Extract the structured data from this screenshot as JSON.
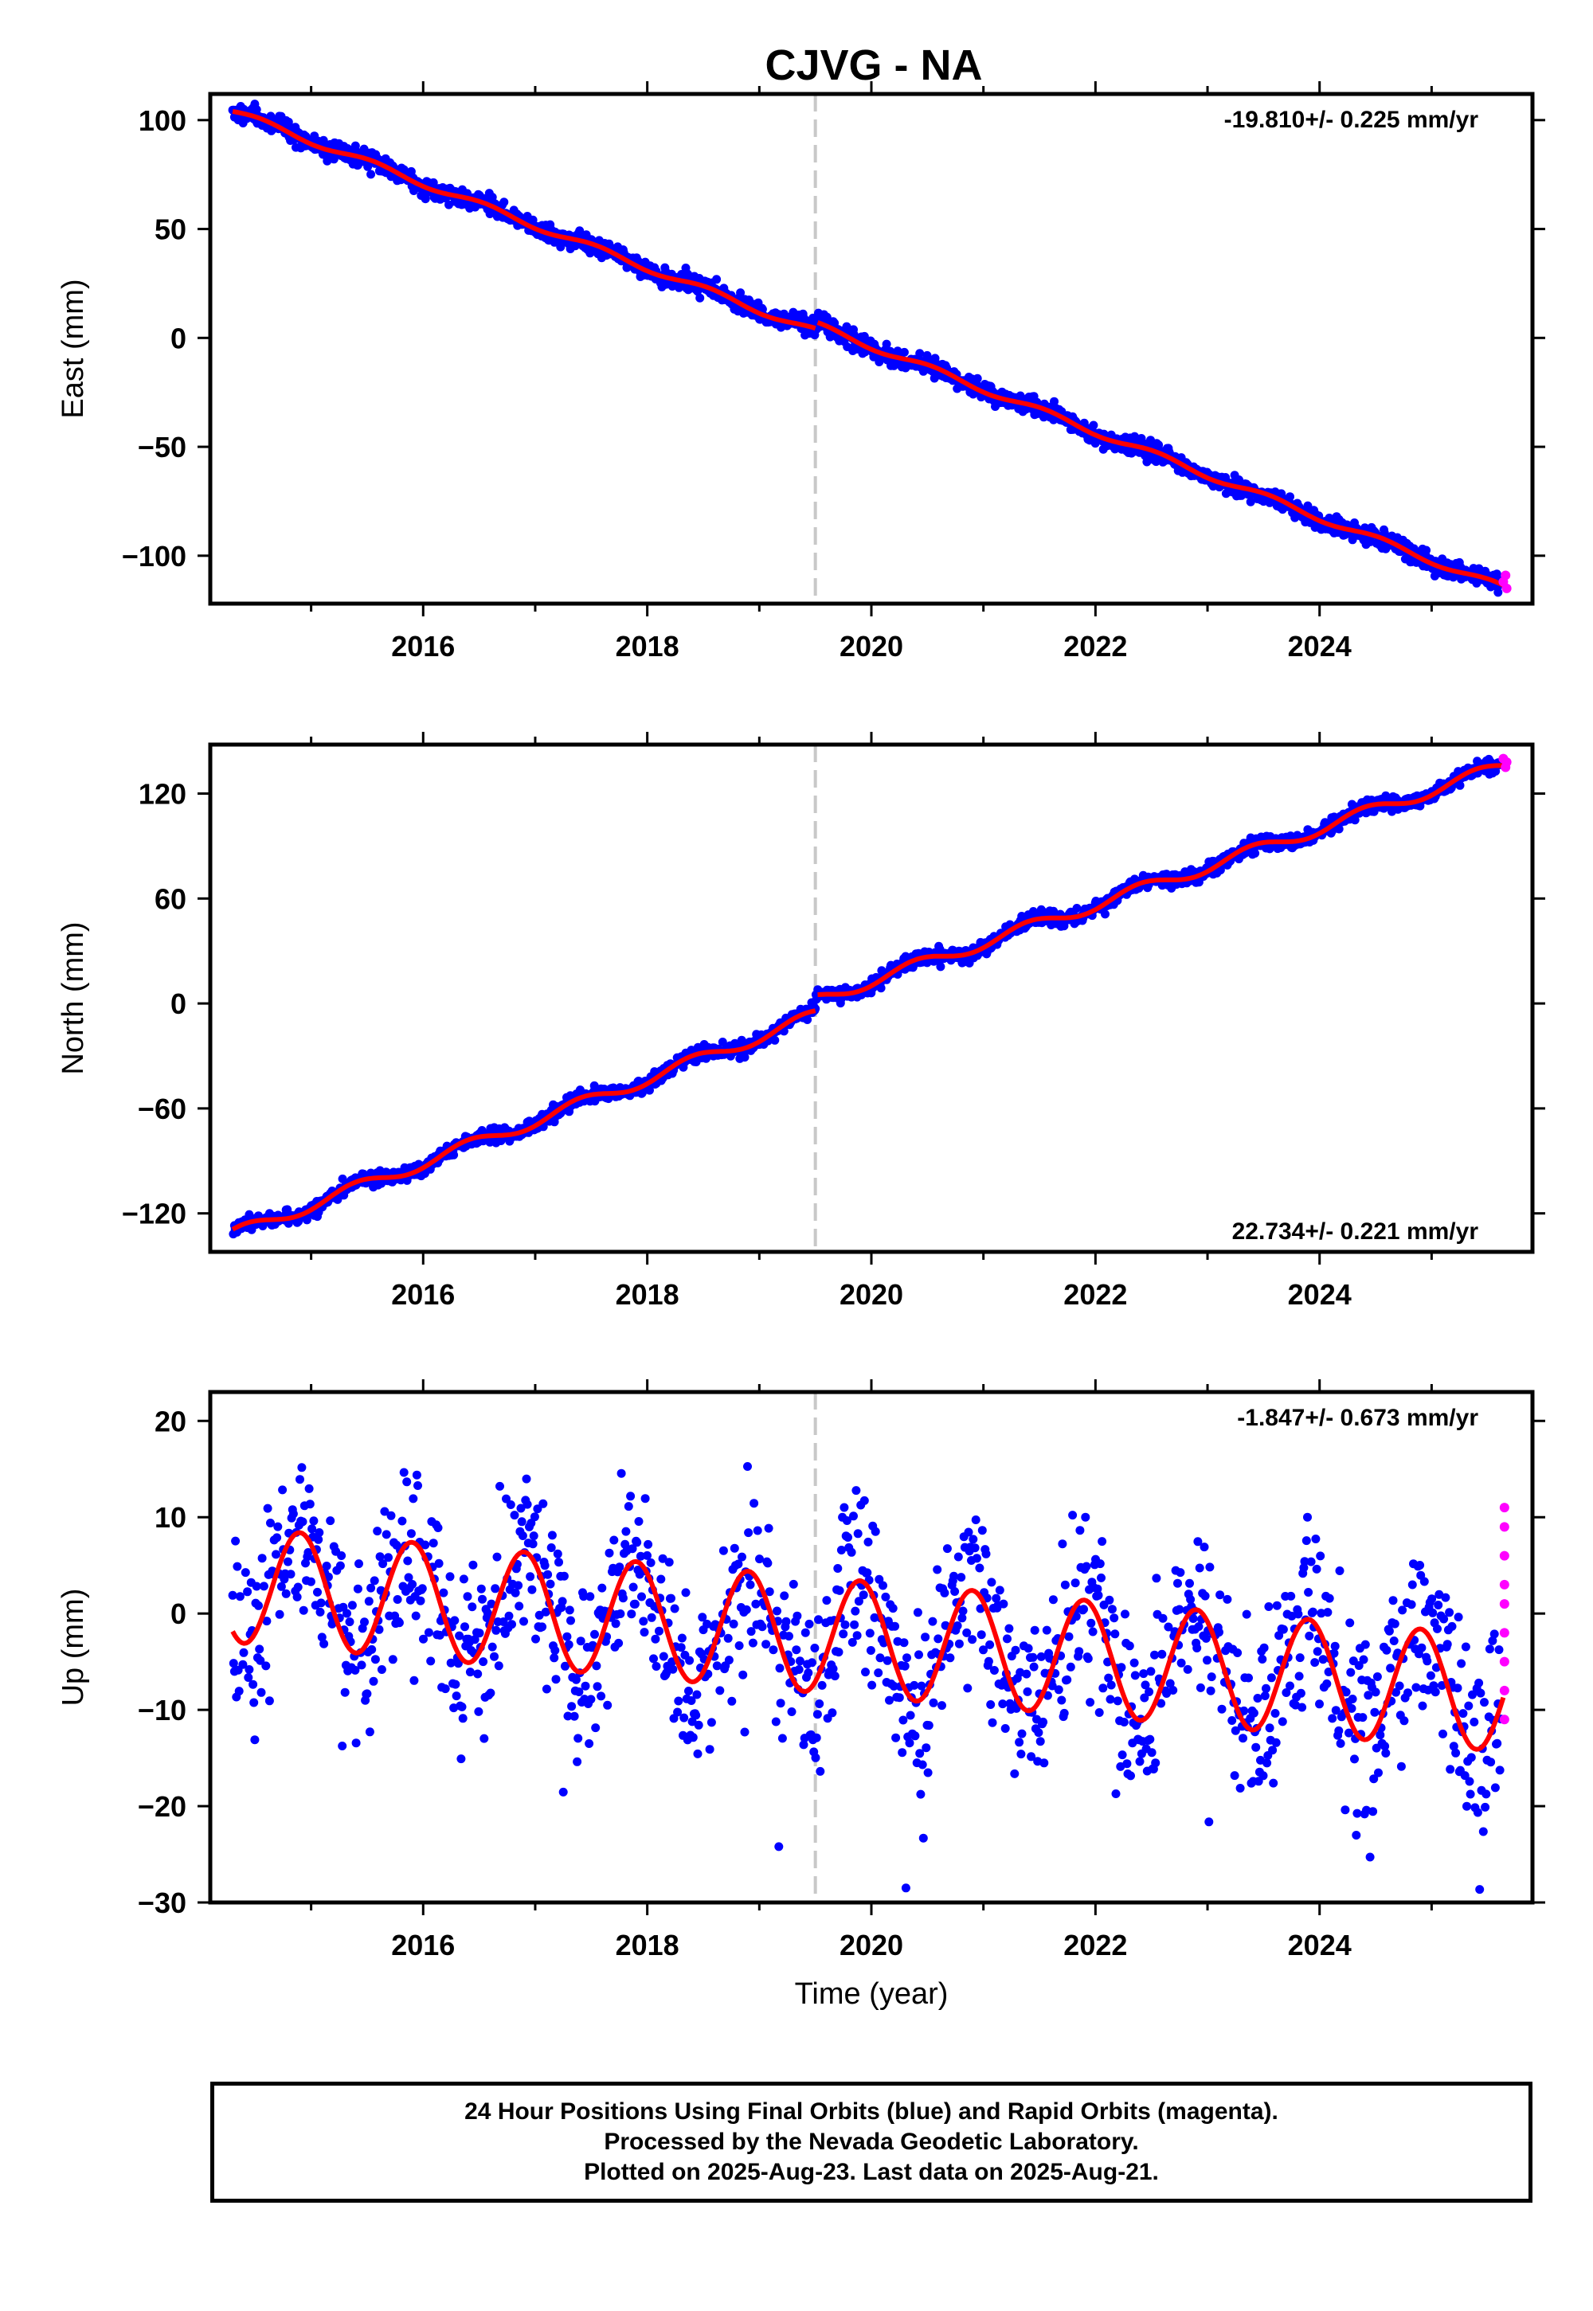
{
  "title": "CJVG - NA",
  "xlabel": "Time (year)",
  "footer": {
    "line1": "24 Hour Positions Using Final Orbits (blue) and Rapid Orbits (magenta).",
    "line2": "Processed by the Nevada Geodetic Laboratory.",
    "line3": "Plotted on 2025-Aug-23. Last data on 2025-Aug-21."
  },
  "colors": {
    "final_orbits": "#0000ff",
    "rapid_orbits": "#ff00ff",
    "model_fit": "#ff0000",
    "event_line": "#c8c8c8"
  },
  "chart_data": [
    {
      "type": "scatter",
      "component": "east",
      "ylabel": "East (mm)",
      "rate_label": "-19.810+/- 0.225 mm/yr",
      "xlim": [
        2014.1,
        2025.9
      ],
      "ylim": [
        -122,
        112
      ],
      "xticks": [
        2016,
        2018,
        2020,
        2022,
        2024
      ],
      "yticks": [
        -100,
        -50,
        0,
        50,
        100
      ],
      "event_x": 2019.5,
      "trend": {
        "series": "model fit",
        "points": [
          [
            2014.3,
            104
          ],
          [
            2019.5,
            3
          ],
          [
            2019.5,
            6
          ],
          [
            2025.65,
            -115
          ]
        ]
      },
      "rapid_points": [
        [
          2025.64,
          -112
        ],
        [
          2025.66,
          -109
        ],
        [
          2025.67,
          -115
        ]
      ],
      "grid": false
    },
    {
      "type": "scatter",
      "component": "north",
      "ylabel": "North (mm)",
      "rate_label": "22.734+/- 0.221 mm/yr",
      "xlim": [
        2014.1,
        2025.9
      ],
      "ylim": [
        -142,
        148
      ],
      "xticks": [
        2016,
        2018,
        2020,
        2022,
        2024
      ],
      "yticks": [
        -120,
        -60,
        0,
        60,
        120
      ],
      "event_x": 2019.5,
      "trend": {
        "series": "model fit",
        "points": [
          [
            2014.3,
            -132
          ],
          [
            2019.5,
            -7
          ],
          [
            2019.5,
            2
          ],
          [
            2025.65,
            136
          ]
        ]
      },
      "rapid_points": [
        [
          2025.64,
          140
        ],
        [
          2025.66,
          135
        ],
        [
          2025.67,
          138
        ]
      ],
      "grid": false
    },
    {
      "type": "scatter",
      "component": "up",
      "ylabel": "Up (mm)",
      "rate_label": "-1.847+/- 0.673 mm/yr",
      "xlim": [
        2014.1,
        2025.9
      ],
      "ylim": [
        -30,
        23
      ],
      "xticks": [
        2016,
        2018,
        2020,
        2022,
        2024
      ],
      "yticks": [
        -30,
        -20,
        -10,
        0,
        10,
        20
      ],
      "event_x": 2019.5,
      "seasonal_model": {
        "offset_mm": 3,
        "rate_mm_per_yr": -1.0,
        "amplitude_mm": 6,
        "peak_month": "November"
      },
      "rapid_points": [
        [
          2025.65,
          11
        ],
        [
          2025.65,
          9
        ],
        [
          2025.65,
          6
        ],
        [
          2025.65,
          3
        ],
        [
          2025.65,
          1
        ],
        [
          2025.65,
          -2
        ],
        [
          2025.65,
          -5
        ],
        [
          2025.65,
          -8
        ],
        [
          2025.65,
          -11
        ]
      ],
      "grid": false
    }
  ]
}
